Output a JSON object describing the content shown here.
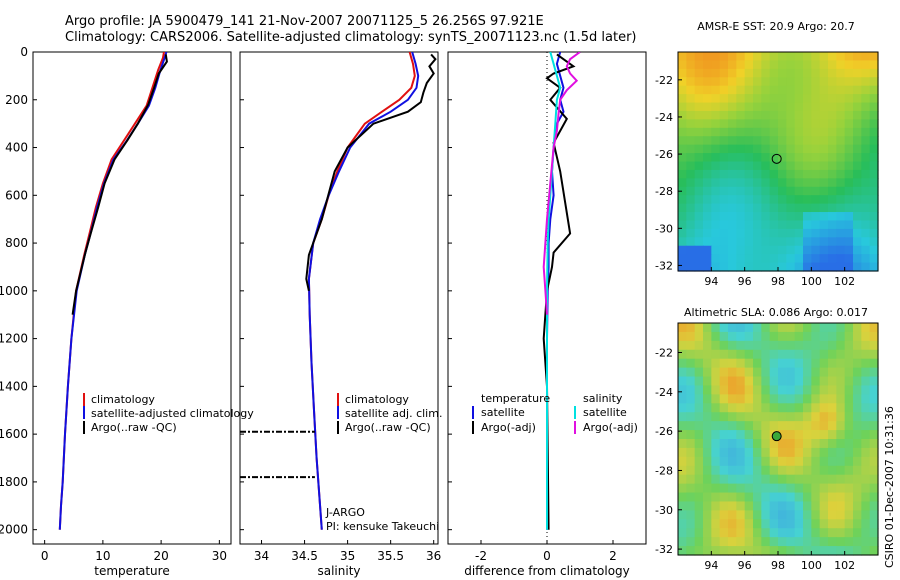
{
  "header": {
    "line1": "Argo profile: JA 5900479_141 21-Nov-2007 20071125_5 26.256S 97.921E",
    "line2": "Climatology: CARS2006. Satellite-adjusted climatology: synTS_20071123.nc (1.5d later)"
  },
  "legend1": [
    "climatology",
    "satellite-adjusted climatology",
    "Argo(..raw -QC)"
  ],
  "legend2": [
    "climatology",
    "satellite adj. clim.",
    "Argo(..raw -QC)"
  ],
  "legend3": {
    "temp_heading": "temperature",
    "sal_heading": "salinity",
    "temp_items": [
      "satellite",
      "Argo(-adj)"
    ],
    "sal_items": [
      "satellite",
      "Argo(-adj)"
    ]
  },
  "project": {
    "program": "J-ARGO",
    "pi": "PI: kensuke Takeuchi"
  },
  "footer": {
    "credit": "CSIRO 01-Dec-2007 10:31:36"
  },
  "colors": {
    "climatology": "#e01010",
    "satellite": "#1010e0",
    "argo": "#000000",
    "sal_satellite": "#00e0e0",
    "sal_argo": "#e010e0"
  },
  "chart_data": [
    {
      "type": "line",
      "xlabel": "temperature",
      "ylim": [
        2060,
        0
      ],
      "xlim": [
        -2,
        32
      ],
      "xticks": [
        0,
        10,
        20,
        30
      ],
      "yticks": [
        0,
        200,
        400,
        600,
        800,
        1000,
        1200,
        1400,
        1600,
        1800,
        2000
      ],
      "series": [
        {
          "name": "climatology",
          "color": "#e01010",
          "x": [
            20.5,
            20.3,
            19.5,
            18.5,
            17.5,
            15.5,
            13.5,
            11.5,
            10.0,
            8.8,
            7.8,
            6.8,
            5.4,
            4.6,
            4.0,
            3.5,
            3.1,
            2.8,
            2.6
          ],
          "y": [
            0,
            25,
            75,
            150,
            225,
            300,
            375,
            450,
            550,
            650,
            750,
            850,
            1000,
            1200,
            1400,
            1600,
            1800,
            1900,
            2000
          ]
        },
        {
          "name": "satellite-adjusted climatology",
          "color": "#1010e0",
          "x": [
            20.9,
            20.6,
            19.9,
            19.0,
            17.9,
            16.0,
            14.0,
            11.8,
            10.2,
            9.0,
            8.0,
            6.9,
            5.5,
            4.6,
            4.0,
            3.5,
            3.1,
            2.8,
            2.6
          ],
          "y": [
            0,
            25,
            75,
            150,
            225,
            300,
            375,
            450,
            550,
            650,
            750,
            850,
            1000,
            1200,
            1400,
            1600,
            1800,
            1900,
            2000
          ]
        },
        {
          "name": "Argo(..raw -QC)",
          "color": "#000000",
          "x": [
            20.8,
            21.0,
            19.6,
            18.8,
            17.8,
            16.0,
            14.2,
            12.0,
            10.3,
            9.2,
            7.9,
            7.0,
            5.4,
            4.8
          ],
          "y": [
            10,
            40,
            90,
            150,
            220,
            300,
            370,
            450,
            550,
            650,
            760,
            840,
            1000,
            1100
          ]
        }
      ]
    },
    {
      "type": "line",
      "xlabel": "salinity",
      "ylim": [
        2060,
        0
      ],
      "xlim": [
        33.75,
        36.05
      ],
      "xticks": [
        34,
        34.5,
        35,
        35.5,
        36
      ],
      "series": [
        {
          "name": "climatology",
          "color": "#e01010",
          "x": [
            35.72,
            35.76,
            35.78,
            35.74,
            35.6,
            35.4,
            35.2,
            35.0,
            34.88,
            34.78,
            34.7,
            34.6,
            34.55,
            34.56,
            34.58,
            34.61,
            34.64,
            34.67,
            34.7
          ],
          "y": [
            0,
            50,
            100,
            150,
            200,
            250,
            300,
            400,
            500,
            600,
            700,
            800,
            950,
            1100,
            1300,
            1500,
            1700,
            1850,
            2000
          ]
        },
        {
          "name": "satellite adj. clim.",
          "color": "#1010e0",
          "x": [
            35.75,
            35.79,
            35.82,
            35.8,
            35.7,
            35.5,
            35.25,
            35.03,
            34.9,
            34.78,
            34.68,
            34.6,
            34.55,
            34.56,
            34.58,
            34.61,
            34.64,
            34.67,
            34.7
          ],
          "y": [
            0,
            50,
            100,
            150,
            200,
            250,
            300,
            400,
            500,
            600,
            700,
            800,
            950,
            1100,
            1300,
            1500,
            1700,
            1850,
            2000
          ]
        },
        {
          "name": "Argo(..raw -QC)",
          "color": "#000000",
          "x": [
            35.97,
            36.02,
            35.95,
            36.0,
            35.92,
            35.88,
            35.85,
            35.7,
            35.3,
            35.0,
            34.85,
            34.7,
            34.55,
            34.52,
            34.55
          ],
          "y": [
            10,
            30,
            60,
            90,
            130,
            170,
            210,
            250,
            300,
            400,
            500,
            700,
            850,
            950,
            1000
          ]
        }
      ],
      "qc_flags": [
        {
          "x_from": 33.75,
          "x_to": 34.62,
          "y": 1590
        },
        {
          "x_from": 33.75,
          "x_to": 34.62,
          "y": 1780
        }
      ]
    },
    {
      "type": "line",
      "xlabel": "difference from climatology",
      "ylim": [
        2060,
        0
      ],
      "xlim": [
        -3,
        3
      ],
      "xticks": [
        -2,
        0,
        2
      ],
      "series": [
        {
          "name": "temperature satellite",
          "color": "#1010e0",
          "x": [
            0.4,
            0.3,
            0.4,
            0.5,
            0.4,
            0.5,
            0.3,
            0.2,
            0.15,
            0.2,
            0.1,
            0.05,
            0.05,
            0.02,
            0.0,
            0.0,
            0.0
          ],
          "y": [
            0,
            50,
            100,
            150,
            200,
            250,
            300,
            400,
            500,
            600,
            700,
            800,
            900,
            1000,
            1200,
            1500,
            2000
          ]
        },
        {
          "name": "temperature Argo(-adj)",
          "color": "#000000",
          "x": [
            0.3,
            0.6,
            0.8,
            0.2,
            0.0,
            0.4,
            0.1,
            0.6,
            0.2,
            0.4,
            0.7,
            0.2,
            0.15,
            0.0,
            -0.1,
            0.0,
            0.05
          ],
          "y": [
            10,
            40,
            60,
            90,
            110,
            150,
            200,
            280,
            380,
            500,
            760,
            840,
            900,
            1000,
            1200,
            1400,
            2000
          ]
        },
        {
          "name": "salinity satellite",
          "color": "#00e0e0",
          "x": [
            0.1,
            0.2,
            0.3,
            0.4,
            0.3,
            0.25,
            0.2,
            0.15,
            0.1,
            0.05,
            0.02,
            0.0,
            0.0
          ],
          "y": [
            0,
            50,
            100,
            150,
            200,
            300,
            400,
            500,
            600,
            700,
            800,
            1000,
            2000
          ]
        },
        {
          "name": "salinity Argo(-adj)",
          "color": "#e010e0",
          "x": [
            1.0,
            0.7,
            0.6,
            0.7,
            0.9,
            0.6,
            0.4,
            0.35,
            0.3,
            0.2,
            0.1,
            0.0,
            -0.1,
            -0.05,
            0.0
          ],
          "y": [
            0,
            30,
            60,
            90,
            120,
            160,
            200,
            260,
            330,
            400,
            550,
            700,
            900,
            1000,
            1100
          ]
        }
      ]
    }
  ],
  "maps": [
    {
      "title": "AMSR-E SST: 20.9 Argo: 20.7",
      "xlim": [
        92,
        104
      ],
      "ylim": [
        -32.3,
        -20.5
      ],
      "xticks": [
        94,
        96,
        98,
        100,
        102
      ],
      "yticks": [
        -22,
        -24,
        -26,
        -28,
        -30,
        -32
      ],
      "marker": {
        "lon": 97.921,
        "lat": -26.256,
        "fill": "none"
      },
      "colormap": "temperature-warm-to-cool"
    },
    {
      "title": "Altimetric SLA: 0.086 Argo: 0.017",
      "xlim": [
        92,
        104
      ],
      "ylim": [
        -32.3,
        -20.5
      ],
      "xticks": [
        94,
        96,
        98,
        100,
        102
      ],
      "yticks": [
        -22,
        -24,
        -26,
        -28,
        -30,
        -32
      ],
      "marker": {
        "lon": 97.921,
        "lat": -26.256,
        "fill": "#3aa83a"
      },
      "colormap": "anomaly-blobs"
    }
  ]
}
